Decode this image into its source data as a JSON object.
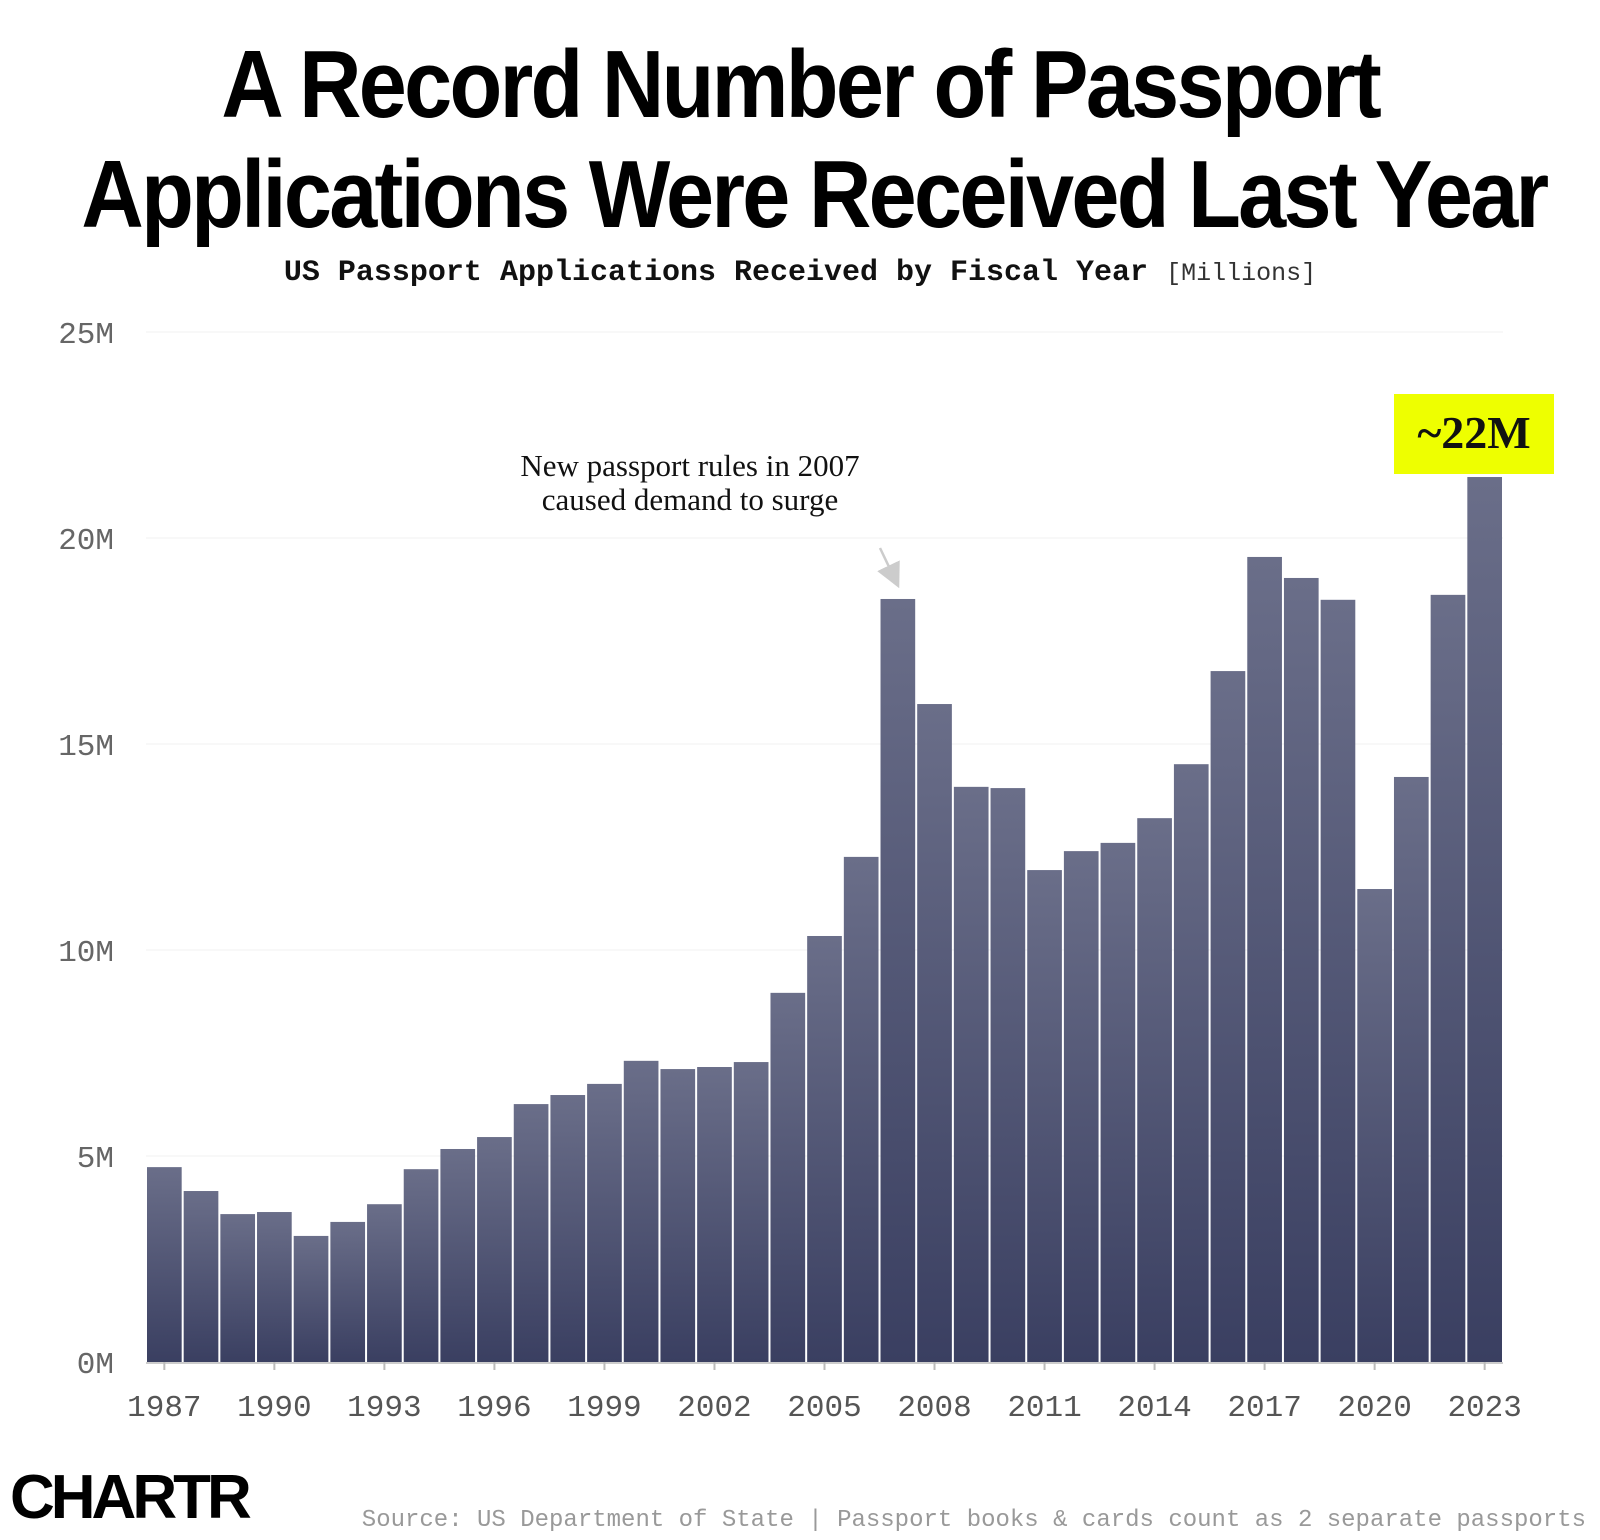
{
  "chart_data": {
    "type": "bar",
    "title": "A Record Number of Passport Applications Were Received Last Year",
    "subtitle": "US Passport Applications Received by Fiscal Year",
    "unit": "[Millions]",
    "categories": [
      1987,
      1988,
      1989,
      1990,
      1991,
      1992,
      1993,
      1994,
      1995,
      1996,
      1997,
      1998,
      1999,
      2000,
      2001,
      2002,
      2003,
      2004,
      2005,
      2006,
      2007,
      2008,
      2009,
      2010,
      2011,
      2012,
      2013,
      2014,
      2015,
      2016,
      2017,
      2018,
      2019,
      2020,
      2021,
      2022,
      2023
    ],
    "values": [
      4.73,
      4.15,
      3.59,
      3.64,
      3.06,
      3.4,
      3.83,
      4.68,
      5.17,
      5.46,
      6.26,
      6.48,
      6.75,
      7.31,
      7.11,
      7.16,
      7.28,
      8.96,
      10.34,
      12.26,
      18.52,
      15.97,
      13.96,
      13.93,
      11.94,
      12.4,
      12.6,
      13.2,
      14.51,
      16.77,
      19.54,
      19.03,
      18.5,
      11.48,
      14.2,
      18.62,
      21.48
    ],
    "ylim": [
      0,
      25
    ],
    "yticks": [
      "0M",
      "5M",
      "10M",
      "15M",
      "20M",
      "25M"
    ],
    "xticks": [
      "1987",
      "1990",
      "1993",
      "1996",
      "1999",
      "2002",
      "2005",
      "2008",
      "2011",
      "2014",
      "2017",
      "2020",
      "2023"
    ],
    "grid": true,
    "annotations": [
      {
        "text_line1": "New passport rules in 2007",
        "text_line2": "caused demand to surge",
        "target": 2007
      },
      {
        "text": "~22M",
        "target": 2023,
        "highlight_color": "#eeff00"
      }
    ],
    "colors": {
      "bar_top": "#6a6e89",
      "bar_bottom": "#3a3f61"
    }
  },
  "title_line1": "A Record Number of Passport",
  "title_line2": "Applications Were Received Last Year",
  "logo": "CHARTR",
  "source": "Source: US Department of State | Passport books & cards count as 2 separate passports"
}
